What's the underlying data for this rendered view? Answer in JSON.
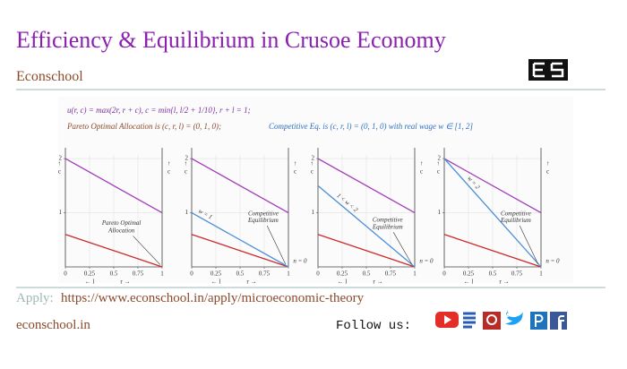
{
  "header": {
    "title": "Efficiency & Equilibrium in Crusoe Economy",
    "subtitle": "Econschool"
  },
  "formula": {
    "utility": "u(r, c) = max(2r, r + c),  c = min{l, l/2 + 1/10},  r + l = 1;",
    "pareto": "Pareto Optimal Allocation is (c, r, l) = (0, 1, 0);",
    "competitive": "Competitive Eq.  is (c, r, l) = (0, 1, 0) with real wage w ∈ [1, 2]"
  },
  "chart_data": [
    {
      "type": "line",
      "xlim": [
        0,
        1
      ],
      "ylim": [
        0,
        2.2
      ],
      "xticks": [
        0,
        0.25,
        0.5,
        0.75,
        1
      ],
      "yticks": [
        1,
        2
      ],
      "grid": true,
      "x_label": [
        "← l",
        "r →"
      ],
      "y_label": [
        "↑",
        "c"
      ],
      "series": [
        {
          "color": "#a33bb8",
          "x": [
            0,
            1
          ],
          "values": [
            2,
            1
          ]
        },
        {
          "color": "#cc2a2a",
          "x": [
            0,
            1
          ],
          "values": [
            0.6,
            0
          ]
        }
      ],
      "annotations": [
        "Pareto Optimal",
        "Allocation"
      ]
    },
    {
      "type": "line",
      "xlim": [
        0,
        1
      ],
      "ylim": [
        0,
        2.2
      ],
      "xticks": [
        0,
        0.25,
        0.5,
        0.75,
        1
      ],
      "yticks": [
        1,
        2
      ],
      "grid": true,
      "x_label": [
        "← l",
        "r →"
      ],
      "y_label": [
        "↑",
        "c"
      ],
      "series": [
        {
          "color": "#a33bb8",
          "x": [
            0,
            1
          ],
          "values": [
            2,
            1
          ]
        },
        {
          "color": "#cc2a2a",
          "x": [
            0,
            1
          ],
          "values": [
            0.6,
            0
          ]
        },
        {
          "color": "#4a8fd6",
          "x": [
            0,
            1
          ],
          "values": [
            1,
            0
          ]
        }
      ],
      "annotations": [
        "w = 1",
        "Competitive",
        "Equilibrium",
        "n = 0"
      ]
    },
    {
      "type": "line",
      "xlim": [
        0,
        1
      ],
      "ylim": [
        0,
        2.2
      ],
      "xticks": [
        0,
        0.25,
        0.5,
        0.75,
        1
      ],
      "yticks": [
        1,
        2
      ],
      "grid": true,
      "x_label": [
        "← l",
        "r →"
      ],
      "y_label": [
        "↑",
        "c"
      ],
      "series": [
        {
          "color": "#a33bb8",
          "x": [
            0,
            1
          ],
          "values": [
            2,
            1
          ]
        },
        {
          "color": "#cc2a2a",
          "x": [
            0,
            1
          ],
          "values": [
            0.6,
            0
          ]
        },
        {
          "color": "#4a8fd6",
          "x": [
            0,
            1
          ],
          "values": [
            1.5,
            0
          ]
        }
      ],
      "annotations": [
        "1 < w < 2",
        "Competitive",
        "Equilibrium",
        "n = 0"
      ]
    },
    {
      "type": "line",
      "xlim": [
        0,
        1
      ],
      "ylim": [
        0,
        2.2
      ],
      "xticks": [
        0,
        0.25,
        0.5,
        0.75,
        1
      ],
      "yticks": [
        1,
        2
      ],
      "grid": true,
      "x_label": [
        "← l",
        "r →"
      ],
      "y_label": [
        "↑",
        "c"
      ],
      "series": [
        {
          "color": "#a33bb8",
          "x": [
            0,
            1
          ],
          "values": [
            2,
            1
          ]
        },
        {
          "color": "#cc2a2a",
          "x": [
            0,
            1
          ],
          "values": [
            0.6,
            0
          ]
        },
        {
          "color": "#4a8fd6",
          "x": [
            0,
            1
          ],
          "values": [
            2,
            0
          ]
        }
      ],
      "annotations": [
        "w = 2",
        "Competitive",
        "Equilibrium",
        "n = 0"
      ]
    }
  ],
  "footer": {
    "apply_label": "Apply:",
    "url": "https://www.econschool.in/apply/microeconomic-theory",
    "site": "econschool.in",
    "follow": "Follow us:"
  }
}
